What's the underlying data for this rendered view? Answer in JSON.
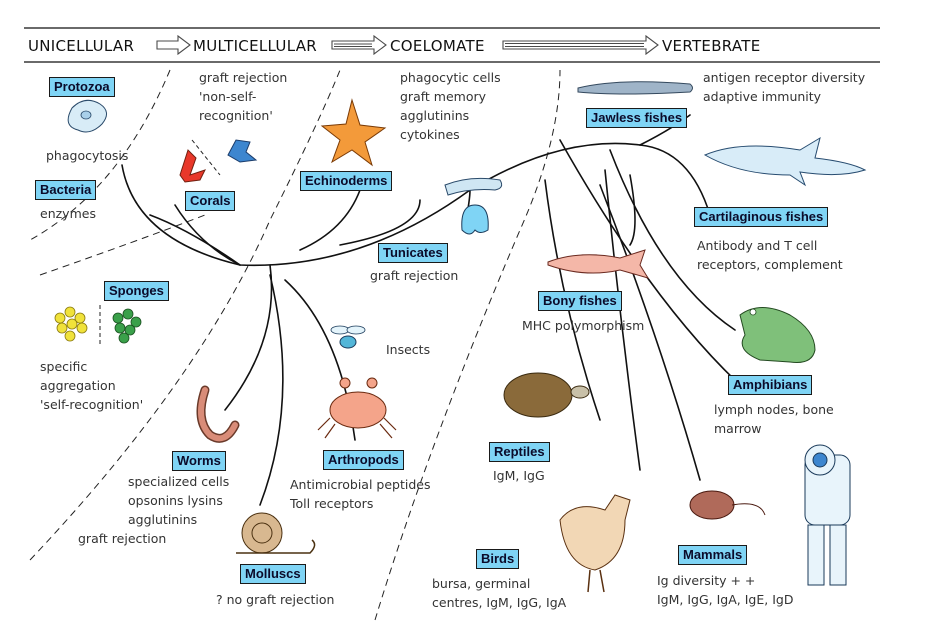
{
  "header": {
    "stages": [
      "UNICELLULAR",
      "MULTICELLULAR",
      "COELOMATE",
      "VERTEBRATE"
    ],
    "arrow_color": "#4a4a4a"
  },
  "colors": {
    "label_fill": "#7fd4f5",
    "label_border": "#1a1a1a",
    "branch": "#111111"
  },
  "groups": {
    "protozoa": {
      "label": "Protozoa",
      "note": "phagocytosis"
    },
    "bacteria": {
      "label": "Bacteria",
      "note": "enzymes"
    },
    "corals": {
      "label": "Corals",
      "note": "graft rejection\n'non-self-\nrecognition'"
    },
    "sponges": {
      "label": "Sponges",
      "note": "specific\naggregation\n'self-recognition'"
    },
    "echinoderms": {
      "label": "Echinoderms",
      "note": "phagocytic cells\ngraft memory\nagglutinins\ncytokines"
    },
    "tunicates": {
      "label": "Tunicates",
      "note": "graft rejection"
    },
    "worms": {
      "label": "Worms",
      "note": "specialized cells\nopsonins lysins\nagglutinins"
    },
    "worms_extra": {
      "note": "graft rejection"
    },
    "insects": {
      "note": "Insects"
    },
    "arthropods": {
      "label": "Arthropods",
      "note": "Antimicrobial peptides\nToll receptors"
    },
    "molluscs": {
      "label": "Molluscs",
      "note": "? no graft rejection"
    },
    "jawless": {
      "label": "Jawless fishes",
      "note": "antigen receptor diversity\nadaptive immunity"
    },
    "cartilaginous": {
      "label": "Cartilaginous fishes",
      "note": "Antibody and T cell\nreceptors, complement"
    },
    "bony": {
      "label": "Bony fishes",
      "note": "MHC polymorphism"
    },
    "amphibians": {
      "label": "Amphibians",
      "note": "lymph nodes, bone\nmarrow"
    },
    "reptiles": {
      "label": "Reptiles",
      "note": "IgM, IgG"
    },
    "birds": {
      "label": "Birds",
      "note": "bursa, germinal\ncentres, IgM, IgG, IgA"
    },
    "mammals": {
      "label": "Mammals",
      "note": "Ig diversity + +\nIgM, IgG, IgA, IgE, IgD"
    }
  },
  "icons": [
    "amoeba-icon",
    "coral-icon",
    "starfish-icon",
    "sponge-cells-icon",
    "eel-icon",
    "shark-icon",
    "tunicate-icon",
    "bony-fish-icon",
    "frog-icon",
    "fly-icon",
    "crab-icon",
    "worm-icon",
    "turtle-icon",
    "snail-icon",
    "hen-icon",
    "mouse-icon",
    "astronaut-icon"
  ]
}
